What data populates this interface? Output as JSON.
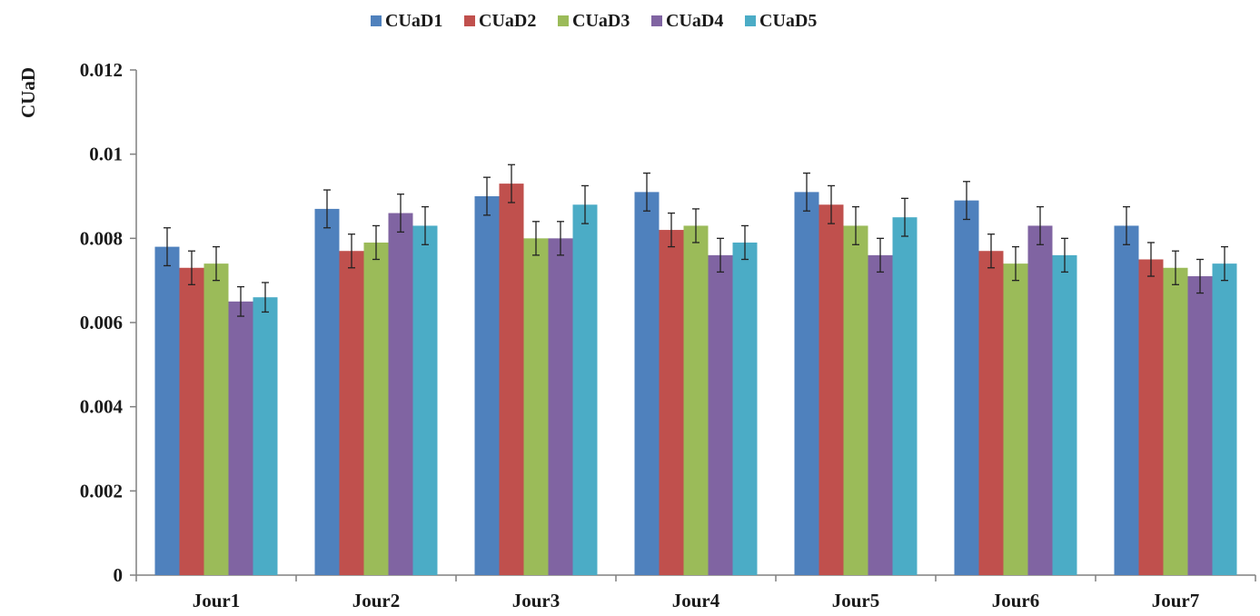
{
  "chart_data": {
    "type": "bar",
    "title": "",
    "xlabel": "",
    "ylabel": "CUaD",
    "ylim": [
      0,
      0.012
    ],
    "yticks": [
      "0",
      "0.002",
      "0.004",
      "0.006",
      "0.008",
      "0.01",
      "0.012"
    ],
    "ytick_values": [
      0,
      0.002,
      0.004,
      0.006,
      0.008,
      0.01,
      0.012
    ],
    "grid": false,
    "legend_position": "top",
    "categories": [
      "Jour1",
      "Jour2",
      "Jour3",
      "Jour4",
      "Jour5",
      "Jour6",
      "Jour7"
    ],
    "series": [
      {
        "name": "CUaD1",
        "color": "#4f81bd",
        "values": [
          0.0078,
          0.0087,
          0.009,
          0.0091,
          0.0091,
          0.0089,
          0.0083
        ],
        "errors": [
          0.00045,
          0.00045,
          0.00045,
          0.00045,
          0.00045,
          0.00045,
          0.00045
        ]
      },
      {
        "name": "CUaD2",
        "color": "#c0504d",
        "values": [
          0.0073,
          0.0077,
          0.0093,
          0.0082,
          0.0088,
          0.0077,
          0.0075
        ],
        "errors": [
          0.0004,
          0.0004,
          0.00045,
          0.0004,
          0.00045,
          0.0004,
          0.0004
        ]
      },
      {
        "name": "CUaD3",
        "color": "#9bbb59",
        "values": [
          0.0074,
          0.0079,
          0.008,
          0.0083,
          0.0083,
          0.0074,
          0.0073
        ],
        "errors": [
          0.0004,
          0.0004,
          0.0004,
          0.0004,
          0.00045,
          0.0004,
          0.0004
        ]
      },
      {
        "name": "CUaD4",
        "color": "#8064a2",
        "values": [
          0.0065,
          0.0086,
          0.008,
          0.0076,
          0.0076,
          0.0083,
          0.0071
        ],
        "errors": [
          0.00035,
          0.00045,
          0.0004,
          0.0004,
          0.0004,
          0.00045,
          0.0004
        ]
      },
      {
        "name": "CUaD5",
        "color": "#4bacc6",
        "values": [
          0.0066,
          0.0083,
          0.0088,
          0.0079,
          0.0085,
          0.0076,
          0.0074
        ],
        "errors": [
          0.00035,
          0.00045,
          0.00045,
          0.0004,
          0.00045,
          0.0004,
          0.0004
        ]
      }
    ]
  }
}
